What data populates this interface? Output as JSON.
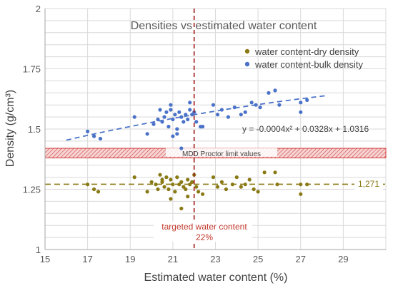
{
  "chart_data": {
    "type": "scatter",
    "title": "Densities vs estimated water content",
    "xlabel": "Estimated water content (%)",
    "ylabel": "Density (g/cm³)",
    "xlim": [
      15,
      31
    ],
    "ylim": [
      1,
      2
    ],
    "xticks": [
      15,
      17,
      19,
      21,
      23,
      25,
      27,
      29
    ],
    "xtick_labels": [
      "15",
      "17",
      "19",
      "21",
      "23",
      "25",
      "27",
      "29"
    ],
    "yticks": [
      1,
      1.25,
      1.5,
      1.75,
      2
    ],
    "ytick_labels": [
      "1",
      "1.25",
      "1.5",
      "1.75",
      "2"
    ],
    "grid": true,
    "legend_position": "top-right",
    "colors": {
      "dry": "#8a7a16",
      "bulk": "#4a72c8",
      "vline": "#a01818",
      "band": "#d23a3a",
      "dryline": "#8a7a16",
      "grid": "#d9d9d9"
    },
    "series": [
      {
        "name": "water content-dry density",
        "color": "#8a7a16",
        "points": [
          [
            17.0,
            1.27
          ],
          [
            17.3,
            1.25
          ],
          [
            17.5,
            1.24
          ],
          [
            19.2,
            1.3
          ],
          [
            19.8,
            1.24
          ],
          [
            20.0,
            1.28
          ],
          [
            20.2,
            1.27
          ],
          [
            20.3,
            1.25
          ],
          [
            20.4,
            1.31
          ],
          [
            20.5,
            1.28
          ],
          [
            20.6,
            1.26
          ],
          [
            20.7,
            1.3
          ],
          [
            20.8,
            1.25
          ],
          [
            20.9,
            1.29
          ],
          [
            21.0,
            1.27
          ],
          [
            21.1,
            1.24
          ],
          [
            21.2,
            1.3
          ],
          [
            21.3,
            1.27
          ],
          [
            21.4,
            1.28
          ],
          [
            21.5,
            1.26
          ],
          [
            21.6,
            1.25
          ],
          [
            21.7,
            1.29
          ],
          [
            21.8,
            1.27
          ],
          [
            21.9,
            1.28
          ],
          [
            22.0,
            1.31
          ],
          [
            22.1,
            1.26
          ],
          [
            22.2,
            1.24
          ],
          [
            22.4,
            1.23
          ],
          [
            20.9,
            1.21
          ],
          [
            21.4,
            1.17
          ],
          [
            22.9,
            1.3
          ],
          [
            23.1,
            1.26
          ],
          [
            23.3,
            1.28
          ],
          [
            23.5,
            1.25
          ],
          [
            23.8,
            1.27
          ],
          [
            24.0,
            1.3
          ],
          [
            24.2,
            1.26
          ],
          [
            24.4,
            1.27
          ],
          [
            24.6,
            1.29
          ],
          [
            24.8,
            1.25
          ],
          [
            25.0,
            1.24
          ],
          [
            25.3,
            1.32
          ],
          [
            25.8,
            1.32
          ],
          [
            25.9,
            1.27
          ],
          [
            27.0,
            1.27
          ],
          [
            27.0,
            1.23
          ],
          [
            27.3,
            1.27
          ],
          [
            20.5,
            1.29
          ],
          [
            21.7,
            1.22
          ]
        ]
      },
      {
        "name": "water content-bulk density",
        "color": "#4a72c8",
        "points": [
          [
            17.0,
            1.49
          ],
          [
            17.3,
            1.47
          ],
          [
            17.6,
            1.46
          ],
          [
            19.2,
            1.55
          ],
          [
            19.8,
            1.48
          ],
          [
            20.1,
            1.52
          ],
          [
            20.3,
            1.54
          ],
          [
            20.4,
            1.58
          ],
          [
            20.5,
            1.53
          ],
          [
            20.6,
            1.55
          ],
          [
            20.7,
            1.57
          ],
          [
            20.8,
            1.51
          ],
          [
            20.9,
            1.58
          ],
          [
            21.0,
            1.54
          ],
          [
            21.1,
            1.56
          ],
          [
            21.2,
            1.5
          ],
          [
            21.3,
            1.57
          ],
          [
            21.4,
            1.55
          ],
          [
            21.5,
            1.53
          ],
          [
            21.6,
            1.56
          ],
          [
            21.7,
            1.54
          ],
          [
            21.8,
            1.58
          ],
          [
            21.9,
            1.56
          ],
          [
            22.0,
            1.57
          ],
          [
            22.1,
            1.53
          ],
          [
            22.3,
            1.51
          ],
          [
            22.4,
            1.51
          ],
          [
            21.0,
            1.47
          ],
          [
            21.4,
            1.42
          ],
          [
            21.2,
            1.48
          ],
          [
            22.9,
            1.6
          ],
          [
            23.1,
            1.56
          ],
          [
            23.3,
            1.58
          ],
          [
            23.6,
            1.55
          ],
          [
            23.9,
            1.59
          ],
          [
            24.2,
            1.56
          ],
          [
            24.4,
            1.57
          ],
          [
            24.7,
            1.61
          ],
          [
            24.9,
            1.6
          ],
          [
            25.1,
            1.59
          ],
          [
            25.5,
            1.65
          ],
          [
            25.8,
            1.66
          ],
          [
            26.0,
            1.6
          ],
          [
            27.0,
            1.61
          ],
          [
            27.0,
            1.57
          ],
          [
            27.3,
            1.62
          ],
          [
            20.9,
            1.6
          ],
          [
            21.8,
            1.61
          ]
        ]
      }
    ],
    "trendline": {
      "series": "water content-bulk density",
      "coeffs": [
        -0.0004,
        0.0328,
        1.0316
      ],
      "x_range": [
        16,
        28.2
      ],
      "label": "y = -0.0004x² + 0.0328x + 1.0316"
    },
    "vertical_line": {
      "x": 22,
      "label_line1": "targeted water content",
      "label_line2": "22%"
    },
    "band": {
      "y_low": 1.38,
      "y_high": 1.42,
      "label": "MDD Proctor limit values"
    },
    "horizontal_line": {
      "y": 1.271,
      "label": "1,271"
    }
  }
}
